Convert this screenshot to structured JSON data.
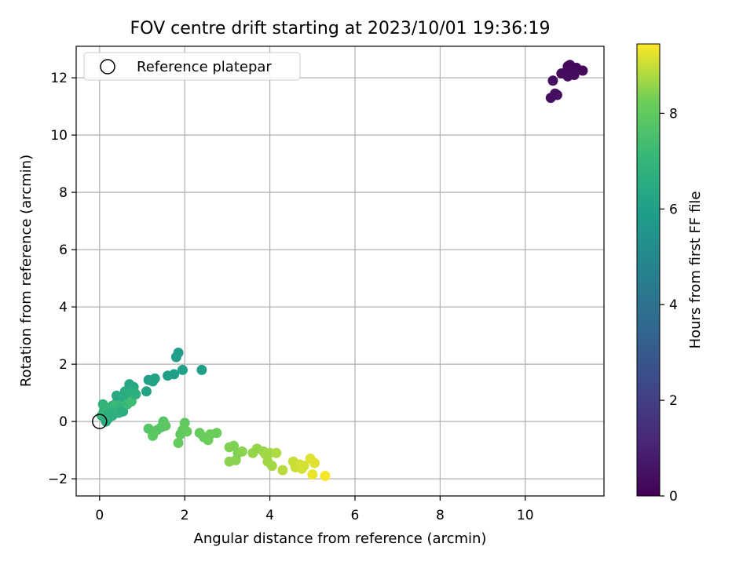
{
  "chart_data": {
    "type": "scatter",
    "title": "FOV centre drift starting at 2023/10/01 19:36:19",
    "xlabel": "Angular distance from reference (arcmin)",
    "ylabel": "Rotation from reference (arcmin)",
    "colorbar_label": "Hours from first FF file",
    "xlim": [
      -0.55,
      11.85
    ],
    "ylim": [
      -2.6,
      13.1
    ],
    "clim": [
      0,
      9.45
    ],
    "x_ticks": [
      0,
      2,
      4,
      6,
      8,
      10
    ],
    "y_ticks": [
      -2,
      0,
      2,
      4,
      6,
      8,
      10,
      12
    ],
    "colorbar_ticks": [
      0,
      2,
      4,
      6,
      8
    ],
    "grid": true,
    "colormap": "viridis",
    "legend": {
      "placement": "upper-left",
      "entries": [
        {
          "label": "Reference platepar",
          "marker": "hollow-circle",
          "x": 0,
          "y": 0
        }
      ]
    },
    "points": [
      {
        "x": 11.0,
        "y": 12.4,
        "t": 0.1
      },
      {
        "x": 11.05,
        "y": 12.45,
        "t": 0.15
      },
      {
        "x": 11.2,
        "y": 12.35,
        "t": 0.2
      },
      {
        "x": 11.35,
        "y": 12.25,
        "t": 0.2
      },
      {
        "x": 10.95,
        "y": 12.2,
        "t": 0.25
      },
      {
        "x": 11.1,
        "y": 12.3,
        "t": 0.25
      },
      {
        "x": 10.85,
        "y": 12.15,
        "t": 0.3
      },
      {
        "x": 11.15,
        "y": 12.1,
        "t": 0.3
      },
      {
        "x": 11.0,
        "y": 12.05,
        "t": 0.3
      },
      {
        "x": 10.65,
        "y": 11.9,
        "t": 0.35
      },
      {
        "x": 10.7,
        "y": 11.45,
        "t": 0.35
      },
      {
        "x": 10.6,
        "y": 11.3,
        "t": 0.4
      },
      {
        "x": 10.75,
        "y": 11.4,
        "t": 0.4
      },
      {
        "x": 0.05,
        "y": 0.2,
        "t": 6.8
      },
      {
        "x": 0.08,
        "y": 0.6,
        "t": 7.0
      },
      {
        "x": 0.1,
        "y": 0.35,
        "t": 6.9
      },
      {
        "x": 0.15,
        "y": 0.45,
        "t": 7.0
      },
      {
        "x": 0.2,
        "y": 0.1,
        "t": 6.7
      },
      {
        "x": 0.25,
        "y": 0.3,
        "t": 6.9
      },
      {
        "x": 0.3,
        "y": 0.55,
        "t": 7.1
      },
      {
        "x": 0.3,
        "y": 0.2,
        "t": 6.8
      },
      {
        "x": 0.35,
        "y": 0.4,
        "t": 6.9
      },
      {
        "x": 0.4,
        "y": 0.65,
        "t": 7.2
      },
      {
        "x": 0.4,
        "y": 0.9,
        "t": 6.4
      },
      {
        "x": 0.45,
        "y": 0.3,
        "t": 6.8
      },
      {
        "x": 0.5,
        "y": 0.5,
        "t": 7.0
      },
      {
        "x": 0.55,
        "y": 0.85,
        "t": 6.5
      },
      {
        "x": 0.55,
        "y": 0.35,
        "t": 6.6
      },
      {
        "x": 0.6,
        "y": 1.05,
        "t": 6.5
      },
      {
        "x": 0.65,
        "y": 0.6,
        "t": 7.2
      },
      {
        "x": 0.7,
        "y": 0.95,
        "t": 6.6
      },
      {
        "x": 0.7,
        "y": 1.3,
        "t": 6.3
      },
      {
        "x": 0.75,
        "y": 0.7,
        "t": 7.3
      },
      {
        "x": 0.8,
        "y": 1.2,
        "t": 6.4
      },
      {
        "x": 0.8,
        "y": 1.05,
        "t": 6.6
      },
      {
        "x": 0.85,
        "y": 0.95,
        "t": 6.7
      },
      {
        "x": 0.15,
        "y": 0.0,
        "t": 6.6
      },
      {
        "x": 0.22,
        "y": 0.25,
        "t": 6.7
      },
      {
        "x": 1.1,
        "y": 1.05,
        "t": 6.1
      },
      {
        "x": 1.15,
        "y": 1.45,
        "t": 6.0
      },
      {
        "x": 1.25,
        "y": 1.4,
        "t": 6.1
      },
      {
        "x": 1.3,
        "y": 1.5,
        "t": 6.1
      },
      {
        "x": 1.6,
        "y": 1.6,
        "t": 6.0
      },
      {
        "x": 1.75,
        "y": 1.65,
        "t": 6.0
      },
      {
        "x": 1.8,
        "y": 2.25,
        "t": 5.9
      },
      {
        "x": 1.85,
        "y": 2.4,
        "t": 5.9
      },
      {
        "x": 1.95,
        "y": 1.8,
        "t": 6.0
      },
      {
        "x": 2.4,
        "y": 1.8,
        "t": 6.0
      },
      {
        "x": 1.15,
        "y": -0.25,
        "t": 7.8
      },
      {
        "x": 1.25,
        "y": -0.5,
        "t": 7.9
      },
      {
        "x": 1.35,
        "y": -0.3,
        "t": 7.9
      },
      {
        "x": 1.45,
        "y": -0.2,
        "t": 7.8
      },
      {
        "x": 1.5,
        "y": 0.0,
        "t": 7.8
      },
      {
        "x": 1.55,
        "y": -0.15,
        "t": 7.9
      },
      {
        "x": 1.85,
        "y": -0.75,
        "t": 8.1
      },
      {
        "x": 1.9,
        "y": -0.45,
        "t": 8.0
      },
      {
        "x": 1.95,
        "y": -0.3,
        "t": 8.0
      },
      {
        "x": 2.0,
        "y": -0.05,
        "t": 8.0
      },
      {
        "x": 2.05,
        "y": -0.35,
        "t": 8.1
      },
      {
        "x": 2.35,
        "y": -0.4,
        "t": 8.1
      },
      {
        "x": 2.45,
        "y": -0.55,
        "t": 8.2
      },
      {
        "x": 2.55,
        "y": -0.65,
        "t": 8.2
      },
      {
        "x": 2.6,
        "y": -0.45,
        "t": 8.2
      },
      {
        "x": 2.75,
        "y": -0.4,
        "t": 8.2
      },
      {
        "x": 3.05,
        "y": -0.9,
        "t": 8.4
      },
      {
        "x": 3.05,
        "y": -1.4,
        "t": 8.5
      },
      {
        "x": 3.15,
        "y": -0.85,
        "t": 8.4
      },
      {
        "x": 3.2,
        "y": -1.35,
        "t": 8.5
      },
      {
        "x": 3.25,
        "y": -1.1,
        "t": 8.4
      },
      {
        "x": 3.35,
        "y": -1.05,
        "t": 8.5
      },
      {
        "x": 3.6,
        "y": -1.1,
        "t": 8.6
      },
      {
        "x": 3.7,
        "y": -0.95,
        "t": 8.6
      },
      {
        "x": 3.85,
        "y": -1.05,
        "t": 8.6
      },
      {
        "x": 3.9,
        "y": -1.15,
        "t": 8.7
      },
      {
        "x": 3.95,
        "y": -1.4,
        "t": 8.7
      },
      {
        "x": 4.0,
        "y": -1.1,
        "t": 8.7
      },
      {
        "x": 4.05,
        "y": -1.55,
        "t": 8.7
      },
      {
        "x": 4.15,
        "y": -1.1,
        "t": 8.8
      },
      {
        "x": 4.3,
        "y": -1.7,
        "t": 8.9
      },
      {
        "x": 4.55,
        "y": -1.4,
        "t": 9.0
      },
      {
        "x": 4.6,
        "y": -1.6,
        "t": 9.0
      },
      {
        "x": 4.7,
        "y": -1.5,
        "t": 9.1
      },
      {
        "x": 4.75,
        "y": -1.65,
        "t": 9.1
      },
      {
        "x": 4.8,
        "y": -1.55,
        "t": 9.1
      },
      {
        "x": 4.95,
        "y": -1.3,
        "t": 9.2
      },
      {
        "x": 5.0,
        "y": -1.85,
        "t": 9.3
      },
      {
        "x": 5.05,
        "y": -1.45,
        "t": 9.2
      },
      {
        "x": 5.3,
        "y": -1.9,
        "t": 9.4
      }
    ]
  }
}
